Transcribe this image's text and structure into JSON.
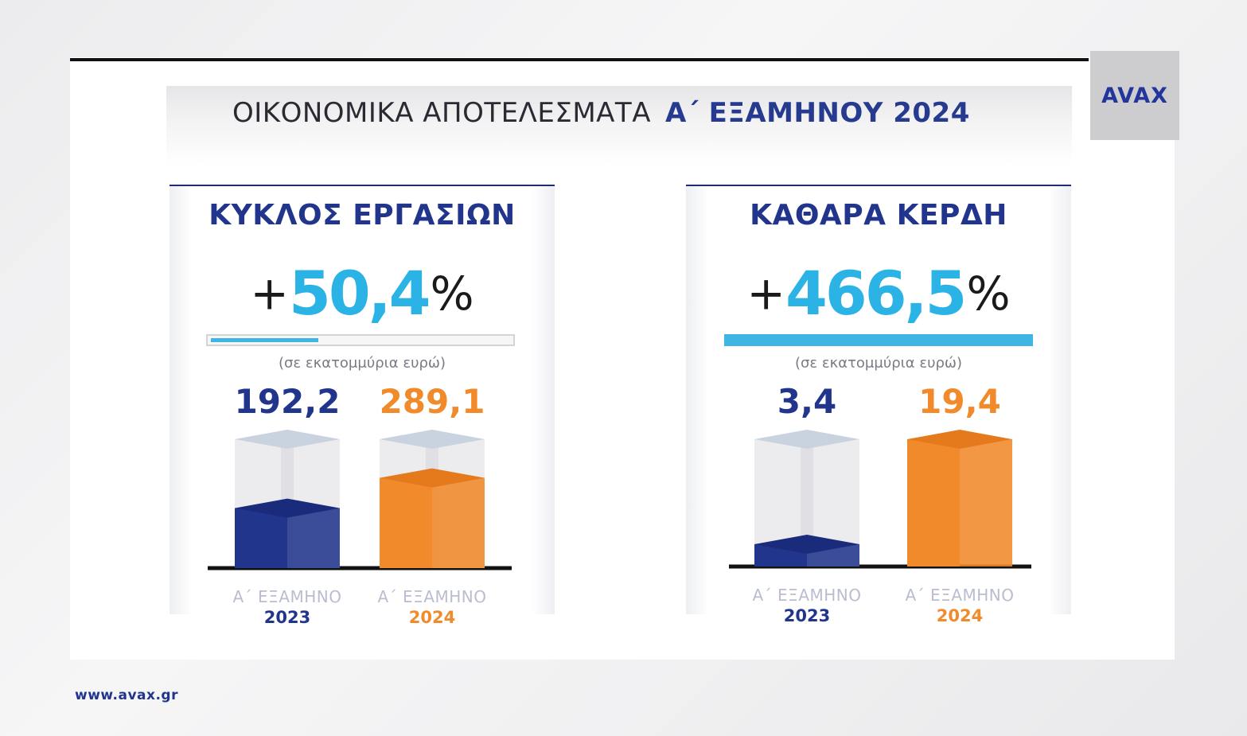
{
  "title": {
    "prefix": "ΟΙΚΟΝΟΜΙΚΑ ΑΠΟΤΕΛΕΣΜΑΤΑ",
    "highlight": "Α΄ ΕΞΑΜΗΝΟΥ 2024"
  },
  "logo": "AVAX",
  "footer": "www.avax.gr",
  "colors": {
    "navy": "#22358d",
    "orange": "#f08a2a",
    "cyan": "#2cb3e6"
  },
  "chart_data": [
    {
      "type": "bar",
      "title": "ΚΥΚΛΟΣ ΕΡΓΑΣΙΩΝ",
      "change_sign": "+",
      "change_value": "50,4",
      "change_unit": "%",
      "change_fraction": 0.504,
      "unit_label": "(σε εκατομμύρια ευρώ)",
      "categories": [
        "Α΄ ΕΞΑΜΗΝΟ 2023",
        "Α΄ ΕΞΑΜΗΝΟ 2024"
      ],
      "category_lines": [
        {
          "top": "Α΄ ΕΞΑΜΗΝΟ",
          "year": "2023"
        },
        {
          "top": "Α΄ ΕΞΑΜΗΝΟ",
          "year": "2024"
        }
      ],
      "values": [
        192.2,
        289.1
      ],
      "value_labels": [
        "192,2",
        "289,1"
      ]
    },
    {
      "type": "bar",
      "title": "ΚΑΘΑΡΑ ΚΕΡΔΗ",
      "change_sign": "+",
      "change_value": "466,5",
      "change_unit": "%",
      "change_fraction": 4.665,
      "unit_label": "(σε εκατομμύρια ευρώ)",
      "categories": [
        "Α΄ ΕΞΑΜΗΝΟ 2023",
        "Α΄ ΕΞΑΜΗΝΟ 2024"
      ],
      "category_lines": [
        {
          "top": "Α΄ ΕΞΑΜΗΝΟ",
          "year": "2023"
        },
        {
          "top": "Α΄ ΕΞΑΜΗΝΟ",
          "year": "2024"
        }
      ],
      "values": [
        3.4,
        19.4
      ],
      "value_labels": [
        "3,4",
        "19,4"
      ]
    }
  ]
}
